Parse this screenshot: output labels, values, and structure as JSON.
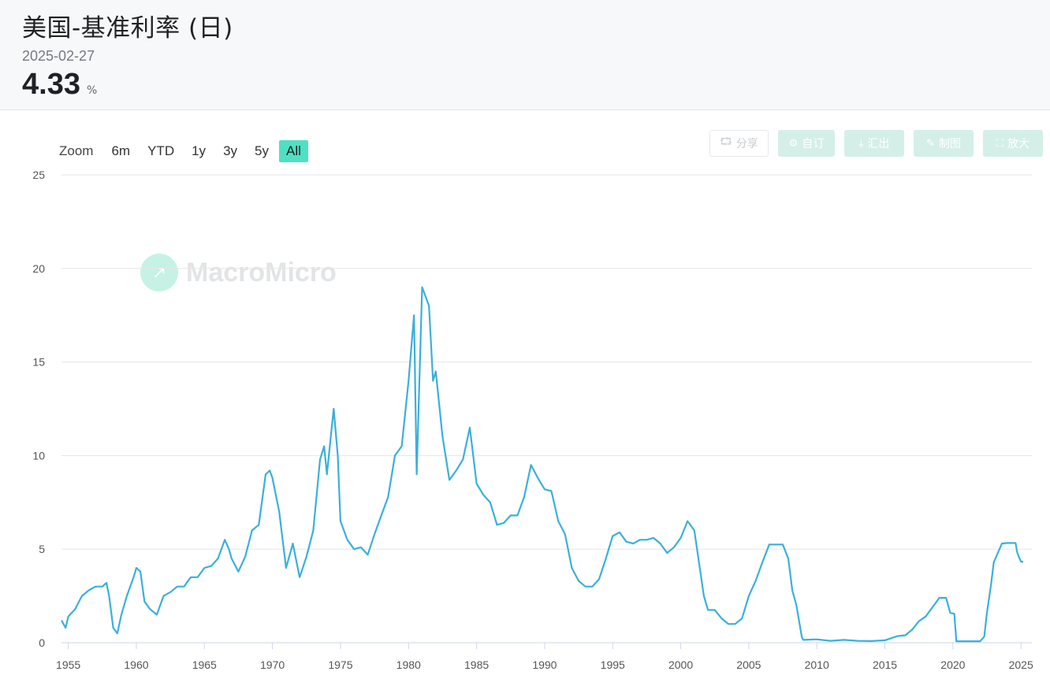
{
  "header": {
    "title": "美国-基准利率 (日)",
    "date": "2025-02-27",
    "value": "4.33",
    "unit": "%"
  },
  "toolbar": {
    "share_label": "分享",
    "share_icon": "share-icon",
    "subscribe_label": "自订",
    "subscribe_icon": "gear-icon",
    "export_label": "汇出",
    "export_icon": "download-icon",
    "draw_label": "制图",
    "draw_icon": "pencil-icon",
    "zoom_label": "放大",
    "zoom_icon": "expand-icon"
  },
  "range_selector": {
    "label": "Zoom",
    "buttons": [
      "6m",
      "YTD",
      "1y",
      "3y",
      "5y",
      "All"
    ],
    "active": "All",
    "active_color": "#4fe0c4"
  },
  "watermark": {
    "text": "MacroMicro",
    "color": "#36d1a6"
  },
  "chart_data": {
    "type": "line",
    "title": "",
    "xlabel": "",
    "ylabel": "",
    "ylim": [
      0,
      25
    ],
    "y_ticks": [
      0,
      5,
      10,
      15,
      20,
      25
    ],
    "x_ticks": [
      1955,
      1960,
      1965,
      1970,
      1975,
      1980,
      1985,
      1990,
      1995,
      2000,
      2005,
      2010,
      2015,
      2020,
      2025
    ],
    "xlim": [
      1954.5,
      2025.8
    ],
    "grid": true,
    "line_color": "#3bb0d9",
    "series": [
      {
        "values": [
          [
            1954.5,
            1.2
          ],
          [
            1954.8,
            0.8
          ],
          [
            1955.0,
            1.4
          ],
          [
            1955.5,
            1.8
          ],
          [
            1956.0,
            2.5
          ],
          [
            1956.5,
            2.8
          ],
          [
            1957.0,
            3.0
          ],
          [
            1957.5,
            3.0
          ],
          [
            1957.8,
            3.2
          ],
          [
            1958.0,
            2.5
          ],
          [
            1958.3,
            0.8
          ],
          [
            1958.6,
            0.5
          ],
          [
            1958.9,
            1.5
          ],
          [
            1959.3,
            2.5
          ],
          [
            1959.8,
            3.5
          ],
          [
            1960.0,
            4.0
          ],
          [
            1960.3,
            3.8
          ],
          [
            1960.6,
            2.2
          ],
          [
            1961.0,
            1.8
          ],
          [
            1961.5,
            1.5
          ],
          [
            1962.0,
            2.5
          ],
          [
            1962.5,
            2.7
          ],
          [
            1963.0,
            3.0
          ],
          [
            1963.5,
            3.0
          ],
          [
            1964.0,
            3.5
          ],
          [
            1964.5,
            3.5
          ],
          [
            1965.0,
            4.0
          ],
          [
            1965.5,
            4.1
          ],
          [
            1966.0,
            4.5
          ],
          [
            1966.5,
            5.5
          ],
          [
            1966.8,
            5.0
          ],
          [
            1967.0,
            4.5
          ],
          [
            1967.5,
            3.8
          ],
          [
            1968.0,
            4.6
          ],
          [
            1968.5,
            6.0
          ],
          [
            1969.0,
            6.3
          ],
          [
            1969.5,
            9.0
          ],
          [
            1969.8,
            9.2
          ],
          [
            1970.0,
            8.8
          ],
          [
            1970.5,
            7.0
          ],
          [
            1971.0,
            4.0
          ],
          [
            1971.5,
            5.3
          ],
          [
            1972.0,
            3.5
          ],
          [
            1972.5,
            4.6
          ],
          [
            1973.0,
            6.0
          ],
          [
            1973.5,
            9.8
          ],
          [
            1973.8,
            10.5
          ],
          [
            1974.0,
            9.0
          ],
          [
            1974.5,
            12.5
          ],
          [
            1974.8,
            10.0
          ],
          [
            1975.0,
            6.5
          ],
          [
            1975.5,
            5.5
          ],
          [
            1976.0,
            5.0
          ],
          [
            1976.5,
            5.1
          ],
          [
            1977.0,
            4.7
          ],
          [
            1977.5,
            5.8
          ],
          [
            1978.0,
            6.8
          ],
          [
            1978.5,
            7.8
          ],
          [
            1979.0,
            10.0
          ],
          [
            1979.5,
            10.5
          ],
          [
            1980.0,
            14.0
          ],
          [
            1980.4,
            17.5
          ],
          [
            1980.6,
            9.0
          ],
          [
            1981.0,
            19.0
          ],
          [
            1981.5,
            18.0
          ],
          [
            1981.8,
            14.0
          ],
          [
            1982.0,
            14.5
          ],
          [
            1982.5,
            11.0
          ],
          [
            1983.0,
            8.7
          ],
          [
            1983.5,
            9.2
          ],
          [
            1984.0,
            9.8
          ],
          [
            1984.5,
            11.5
          ],
          [
            1985.0,
            8.5
          ],
          [
            1985.5,
            7.9
          ],
          [
            1986.0,
            7.5
          ],
          [
            1986.5,
            6.3
          ],
          [
            1987.0,
            6.4
          ],
          [
            1987.5,
            6.8
          ],
          [
            1988.0,
            6.8
          ],
          [
            1988.5,
            7.8
          ],
          [
            1989.0,
            9.5
          ],
          [
            1989.5,
            8.8
          ],
          [
            1990.0,
            8.2
          ],
          [
            1990.5,
            8.1
          ],
          [
            1991.0,
            6.5
          ],
          [
            1991.5,
            5.8
          ],
          [
            1992.0,
            4.0
          ],
          [
            1992.5,
            3.3
          ],
          [
            1993.0,
            3.0
          ],
          [
            1993.5,
            3.0
          ],
          [
            1994.0,
            3.4
          ],
          [
            1994.5,
            4.5
          ],
          [
            1995.0,
            5.7
          ],
          [
            1995.5,
            5.9
          ],
          [
            1996.0,
            5.4
          ],
          [
            1996.5,
            5.3
          ],
          [
            1997.0,
            5.5
          ],
          [
            1997.5,
            5.5
          ],
          [
            1998.0,
            5.6
          ],
          [
            1998.5,
            5.3
          ],
          [
            1999.0,
            4.8
          ],
          [
            1999.5,
            5.1
          ],
          [
            2000.0,
            5.6
          ],
          [
            2000.5,
            6.5
          ],
          [
            2001.0,
            6.0
          ],
          [
            2001.3,
            4.5
          ],
          [
            2001.7,
            2.5
          ],
          [
            2002.0,
            1.75
          ],
          [
            2002.5,
            1.75
          ],
          [
            2003.0,
            1.3
          ],
          [
            2003.5,
            1.0
          ],
          [
            2004.0,
            1.0
          ],
          [
            2004.5,
            1.3
          ],
          [
            2005.0,
            2.5
          ],
          [
            2005.5,
            3.3
          ],
          [
            2006.0,
            4.3
          ],
          [
            2006.5,
            5.25
          ],
          [
            2007.0,
            5.25
          ],
          [
            2007.5,
            5.25
          ],
          [
            2007.9,
            4.5
          ],
          [
            2008.2,
            2.8
          ],
          [
            2008.5,
            2.0
          ],
          [
            2008.9,
            0.3
          ],
          [
            2009.0,
            0.15
          ],
          [
            2010.0,
            0.18
          ],
          [
            2011.0,
            0.1
          ],
          [
            2012.0,
            0.15
          ],
          [
            2013.0,
            0.1
          ],
          [
            2014.0,
            0.09
          ],
          [
            2015.0,
            0.13
          ],
          [
            2015.9,
            0.35
          ],
          [
            2016.5,
            0.4
          ],
          [
            2017.0,
            0.7
          ],
          [
            2017.5,
            1.15
          ],
          [
            2018.0,
            1.4
          ],
          [
            2018.5,
            1.9
          ],
          [
            2019.0,
            2.4
          ],
          [
            2019.5,
            2.4
          ],
          [
            2019.8,
            1.6
          ],
          [
            2020.1,
            1.55
          ],
          [
            2020.25,
            0.08
          ],
          [
            2021.0,
            0.08
          ],
          [
            2022.0,
            0.08
          ],
          [
            2022.3,
            0.33
          ],
          [
            2022.5,
            1.6
          ],
          [
            2022.8,
            3.1
          ],
          [
            2023.0,
            4.3
          ],
          [
            2023.3,
            4.8
          ],
          [
            2023.6,
            5.3
          ],
          [
            2024.0,
            5.33
          ],
          [
            2024.6,
            5.33
          ],
          [
            2024.72,
            4.83
          ],
          [
            2024.85,
            4.58
          ],
          [
            2025.0,
            4.33
          ],
          [
            2025.16,
            4.33
          ]
        ]
      }
    ]
  }
}
